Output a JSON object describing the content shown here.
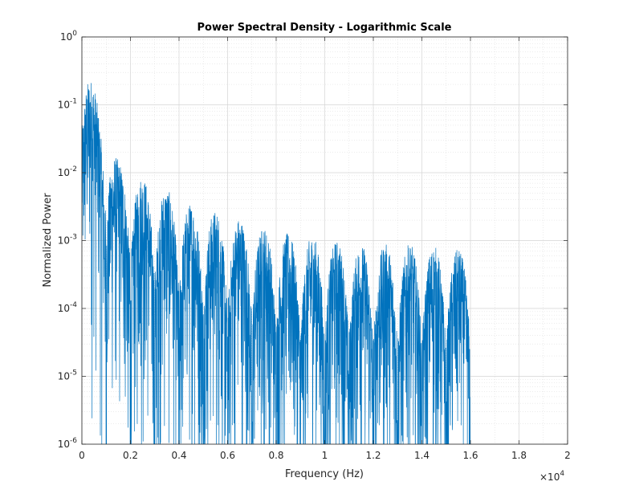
{
  "chart_data": {
    "type": "line",
    "title": "Power Spectral Density - Logarithmic Scale",
    "xlabel": "Frequency (Hz)",
    "ylabel": "Normalized Power",
    "x_exponent_label": "×10",
    "x_exponent_power": "4",
    "xlim": [
      0,
      20000
    ],
    "ylim": [
      1e-06,
      1
    ],
    "yscale": "log",
    "grid": true,
    "minor_grid": true,
    "x_ticks": [
      0,
      2000,
      4000,
      6000,
      8000,
      10000,
      12000,
      14000,
      16000,
      18000,
      20000
    ],
    "x_tick_labels": [
      "0",
      "0.2",
      "0.4",
      "0.6",
      "0.8",
      "1",
      "1.2",
      "1.4",
      "1.6",
      "1.8",
      "2"
    ],
    "y_ticks": [
      1e-06,
      1e-05,
      0.0001,
      0.001,
      0.01,
      0.1,
      1
    ],
    "y_tick_labels": [
      {
        "base": "10",
        "exp": "-6"
      },
      {
        "base": "10",
        "exp": "-5"
      },
      {
        "base": "10",
        "exp": "-4"
      },
      {
        "base": "10",
        "exp": "-3"
      },
      {
        "base": "10",
        "exp": "-2"
      },
      {
        "base": "10",
        "exp": "-1"
      },
      {
        "base": "10",
        "exp": "0"
      }
    ],
    "signal_cutoff_hz": 16000,
    "lobe_spacing_hz": 1000,
    "series": [
      {
        "color": "#0072BD",
        "envelope": [
          {
            "x": 0,
            "peak": 1.0
          },
          {
            "x": 300,
            "peak": 0.35
          },
          {
            "x": 700,
            "peak": 0.1
          },
          {
            "x": 1500,
            "peak": 0.015
          },
          {
            "x": 2500,
            "peak": 0.009
          },
          {
            "x": 3500,
            "peak": 0.006
          },
          {
            "x": 4500,
            "peak": 0.0035
          },
          {
            "x": 5500,
            "peak": 0.0028
          },
          {
            "x": 6500,
            "peak": 0.0022
          },
          {
            "x": 7500,
            "peak": 0.0016
          },
          {
            "x": 8500,
            "peak": 0.0013
          },
          {
            "x": 9500,
            "peak": 0.0012
          },
          {
            "x": 10500,
            "peak": 0.001
          },
          {
            "x": 11500,
            "peak": 0.0009
          },
          {
            "x": 12500,
            "peak": 0.0009
          },
          {
            "x": 13500,
            "peak": 0.0009
          },
          {
            "x": 14500,
            "peak": 0.00085
          },
          {
            "x": 15500,
            "peak": 0.00075
          }
        ]
      }
    ]
  }
}
